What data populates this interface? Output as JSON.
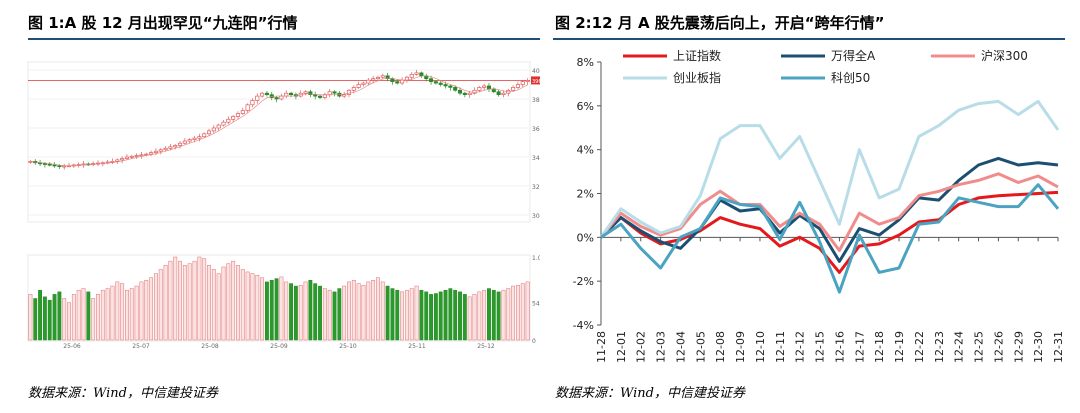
{
  "left": {
    "title": "图 1:A 股 12 月出现罕见“九连阳”行情",
    "source": "数据来源：Wind，中信建投证券",
    "chart_data": {
      "type": "candlestick",
      "title": "图 1:A 股 12 月出现罕见“九连阳”行情",
      "price_ticks": [
        "404",
        "384",
        "364",
        "344",
        "324",
        "304"
      ],
      "price_tick_values": [
        4040,
        3840,
        3640,
        3440,
        3240,
        3040
      ],
      "last_price_label": "3968",
      "last_price": 3968,
      "volume_ticks": [
        "1.0",
        "540",
        "0"
      ],
      "x_ticks": [
        "25-06",
        "25-07",
        "25-08",
        "25-09",
        "25-10",
        "25-11",
        "25-12"
      ],
      "close_path": [
        3410,
        3400,
        3395,
        3390,
        3385,
        3380,
        3375,
        3378,
        3380,
        3385,
        3388,
        3392,
        3390,
        3395,
        3398,
        3400,
        3405,
        3410,
        3420,
        3430,
        3440,
        3445,
        3450,
        3455,
        3460,
        3470,
        3480,
        3490,
        3500,
        3510,
        3520,
        3535,
        3550,
        3560,
        3570,
        3580,
        3600,
        3620,
        3640,
        3660,
        3680,
        3700,
        3720,
        3740,
        3760,
        3800,
        3830,
        3860,
        3880,
        3870,
        3850,
        3840,
        3860,
        3880,
        3870,
        3860,
        3880,
        3890,
        3870,
        3860,
        3850,
        3870,
        3890,
        3880,
        3860,
        3870,
        3900,
        3920,
        3940,
        3950,
        3970,
        3980,
        3990,
        4000,
        3980,
        3960,
        3950,
        3970,
        3990,
        4010,
        4020,
        4000,
        3980,
        3960,
        3950,
        3940,
        3930,
        3920,
        3900,
        3880,
        3870,
        3880,
        3900,
        3920,
        3930,
        3910,
        3890,
        3870,
        3880,
        3900,
        3920,
        3940,
        3960,
        3968
      ],
      "volume_path": [
        0.55,
        0.5,
        0.6,
        0.52,
        0.48,
        0.55,
        0.58,
        0.5,
        0.45,
        0.55,
        0.6,
        0.62,
        0.58,
        0.5,
        0.55,
        0.6,
        0.62,
        0.65,
        0.7,
        0.68,
        0.6,
        0.62,
        0.65,
        0.7,
        0.72,
        0.75,
        0.8,
        0.85,
        0.9,
        0.95,
        1.0,
        0.95,
        0.9,
        0.92,
        0.95,
        1.0,
        0.98,
        0.9,
        0.85,
        0.8,
        0.88,
        0.92,
        0.95,
        0.9,
        0.85,
        0.82,
        0.8,
        0.78,
        0.75,
        0.7,
        0.72,
        0.74,
        0.76,
        0.7,
        0.68,
        0.65,
        0.66,
        0.7,
        0.72,
        0.68,
        0.65,
        0.62,
        0.6,
        0.58,
        0.62,
        0.65,
        0.7,
        0.72,
        0.68,
        0.66,
        0.7,
        0.72,
        0.75,
        0.7,
        0.65,
        0.62,
        0.6,
        0.58,
        0.6,
        0.62,
        0.65,
        0.6,
        0.58,
        0.55,
        0.56,
        0.58,
        0.6,
        0.62,
        0.6,
        0.58,
        0.55,
        0.52,
        0.55,
        0.58,
        0.6,
        0.62,
        0.6,
        0.58,
        0.6,
        0.62,
        0.65,
        0.66,
        0.68,
        0.7
      ]
    }
  },
  "right": {
    "title": "图 2:12 月 A 股先震荡后向上，开启“跨年行情”",
    "source": "数据来源：Wind，中信建投证券",
    "chart_data": {
      "type": "line",
      "title": "图 2:12 月 A 股先震荡后向上，开启“跨年行情”",
      "x": [
        "11-28",
        "12-01",
        "12-02",
        "12-03",
        "12-04",
        "12-05",
        "12-08",
        "12-09",
        "12-10",
        "12-11",
        "12-12",
        "12-15",
        "12-16",
        "12-17",
        "12-18",
        "12-19",
        "12-22",
        "12-23",
        "12-24",
        "12-25",
        "12-26",
        "12-29",
        "12-30",
        "12-31"
      ],
      "y_ticks": [
        "8%",
        "6%",
        "4%",
        "2%",
        "0%",
        "-2%",
        "-4%"
      ],
      "ylim": [
        -4,
        8
      ],
      "legend_position": "top",
      "series": [
        {
          "name": "上证指数",
          "color": "#e3191c",
          "values": [
            0,
            0.9,
            0.2,
            -0.3,
            -0.1,
            0.3,
            0.9,
            0.6,
            0.4,
            -0.4,
            0.0,
            -0.5,
            -1.6,
            -0.4,
            -0.3,
            0.1,
            0.7,
            0.8,
            1.5,
            1.8,
            1.9,
            1.95,
            2.0,
            2.05
          ]
        },
        {
          "name": "万得全A",
          "color": "#1b4f72",
          "values": [
            0,
            0.9,
            0.3,
            -0.2,
            -0.5,
            0.4,
            1.7,
            1.2,
            1.3,
            0.2,
            1.0,
            0.4,
            -1.1,
            0.4,
            0.1,
            0.8,
            1.8,
            1.7,
            2.6,
            3.3,
            3.6,
            3.3,
            3.4,
            3.3
          ]
        },
        {
          "name": "沪深300",
          "color": "#f08c8c",
          "values": [
            0,
            1.1,
            0.5,
            0.1,
            0.4,
            1.5,
            2.1,
            1.5,
            1.5,
            0.5,
            1.1,
            0.6,
            -0.6,
            1.1,
            0.6,
            0.9,
            1.9,
            2.1,
            2.4,
            2.6,
            2.9,
            2.5,
            2.8,
            2.3
          ]
        },
        {
          "name": "创业板指",
          "color": "#b8dde8",
          "values": [
            0,
            1.3,
            0.7,
            0.2,
            0.5,
            1.9,
            4.5,
            5.1,
            5.1,
            3.6,
            4.6,
            2.6,
            0.6,
            4.0,
            1.8,
            2.2,
            4.6,
            5.1,
            5.8,
            6.1,
            6.2,
            5.6,
            6.2,
            4.9
          ]
        },
        {
          "name": "科创50",
          "color": "#4aa3c0",
          "values": [
            0,
            0.6,
            -0.5,
            -1.4,
            0.0,
            0.4,
            1.8,
            1.5,
            1.4,
            -0.1,
            1.6,
            -0.2,
            -2.5,
            0.1,
            -1.6,
            -1.4,
            0.6,
            0.7,
            1.8,
            1.6,
            1.4,
            1.4,
            2.4,
            1.3
          ]
        }
      ]
    }
  }
}
